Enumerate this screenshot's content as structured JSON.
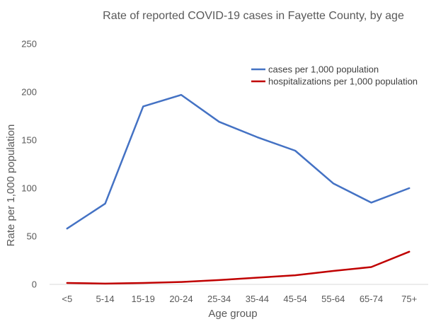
{
  "chart_data": {
    "type": "line",
    "title": "Rate of reported COVID-19 cases in Fayette County, by age",
    "xlabel": "Age group",
    "ylabel": "Rate per 1,000 population",
    "categories": [
      "<5",
      "5-14",
      "15-19",
      "20-24",
      "25-34",
      "35-44",
      "45-54",
      "55-64",
      "65-74",
      "75+"
    ],
    "ylim": [
      0,
      250
    ],
    "yticks": [
      "0",
      "50",
      "100",
      "150",
      "200",
      "250"
    ],
    "grid": false,
    "legend_position": "top-right",
    "series": [
      {
        "name": "cases per 1,000 population",
        "color": "#4472C4",
        "values": [
          58,
          84,
          185,
          197,
          169,
          153,
          139,
          105,
          85,
          100
        ]
      },
      {
        "name": "hospitalizations per 1,000 population",
        "color": "#C00000",
        "values": [
          1.5,
          0.8,
          1.5,
          2.5,
          4.5,
          7,
          9.5,
          14,
          18,
          34
        ]
      }
    ]
  }
}
